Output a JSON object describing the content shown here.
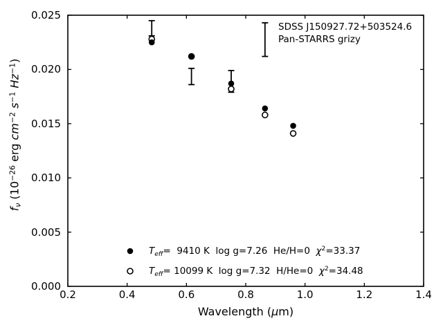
{
  "figure": {
    "background": "#ffffff",
    "foreground": "#000000"
  },
  "chart_data": {
    "type": "scatter",
    "title": "",
    "xlabel_segments": [
      {
        "t": "Wavelength ("
      },
      {
        "t": "μ",
        "i": 1
      },
      {
        "t": "m)"
      }
    ],
    "ylabel_segments": [
      {
        "t": "f",
        "i": 1
      },
      {
        "t": "ν",
        "i": 1,
        "sub": 1
      },
      {
        "t": " (10"
      },
      {
        "t": "−26",
        "sup": 1
      },
      {
        "t": " erg "
      },
      {
        "t": "cm",
        "i": 1
      },
      {
        "t": "−2",
        "sup": 1
      },
      {
        "t": " "
      },
      {
        "t": "s",
        "i": 1
      },
      {
        "t": "−1",
        "sup": 1
      },
      {
        "t": " "
      },
      {
        "t": "Hz",
        "i": 1
      },
      {
        "t": "−1",
        "sup": 1
      },
      {
        "t": ")"
      }
    ],
    "xlim": [
      0.2,
      1.4
    ],
    "ylim": [
      0.0,
      0.025
    ],
    "xticks": [
      0.2,
      0.4,
      0.6,
      0.8,
      1.0,
      1.2,
      1.4
    ],
    "xtick_labels": [
      "0.2",
      "0.4",
      "0.6",
      "0.8",
      "1.0",
      "1.2",
      "1.4"
    ],
    "yticks": [
      0.0,
      0.005,
      0.01,
      0.015,
      0.02,
      0.025
    ],
    "ytick_labels": [
      "0.000",
      "0.005",
      "0.010",
      "0.015",
      "0.020",
      "0.025"
    ],
    "grid": false,
    "x": [
      0.483,
      0.617,
      0.751,
      0.865,
      0.96
    ],
    "series": [
      {
        "name": "model Teff=9410 K",
        "marker": "filled-circle",
        "values": [
          0.0225,
          0.0212,
          0.0187,
          0.0164,
          0.0148
        ]
      },
      {
        "name": "model Teff=10099 K",
        "marker": "open-circle",
        "values": [
          0.0228,
          0.0212,
          0.0182,
          0.0158,
          0.0141
        ]
      }
    ],
    "error_bars": [
      {
        "x": 0.483,
        "lo": 0.0231,
        "hi": 0.0245
      },
      {
        "x": 0.617,
        "lo": 0.0186,
        "hi": 0.0201
      },
      {
        "x": 0.751,
        "lo": 0.0179,
        "hi": 0.0199
      }
    ],
    "annotation": {
      "lines": [
        "SDSS J150927.72+503524.6",
        "Pan-STARRS grizy"
      ],
      "errorbar_sample": {
        "x": 0.865,
        "lo": 0.0212,
        "hi": 0.0243
      }
    },
    "legend": [
      {
        "marker": "filled-circle",
        "segments": [
          {
            "t": "T",
            "i": 1
          },
          {
            "t": "eff",
            "i": 1,
            "sub": 1
          },
          {
            "t": "=  9410 K  log g=7.26  He/H=0  "
          },
          {
            "t": "χ",
            "i": 1
          },
          {
            "t": "2",
            "sup": 1
          },
          {
            "t": "=33.37"
          }
        ]
      },
      {
        "marker": "open-circle",
        "segments": [
          {
            "t": "T",
            "i": 1
          },
          {
            "t": "eff",
            "i": 1,
            "sub": 1
          },
          {
            "t": "= 10099 K  log g=7.32  H/He=0  "
          },
          {
            "t": "χ",
            "i": 1
          },
          {
            "t": "2",
            "sup": 1
          },
          {
            "t": "=34.48"
          }
        ]
      }
    ]
  }
}
